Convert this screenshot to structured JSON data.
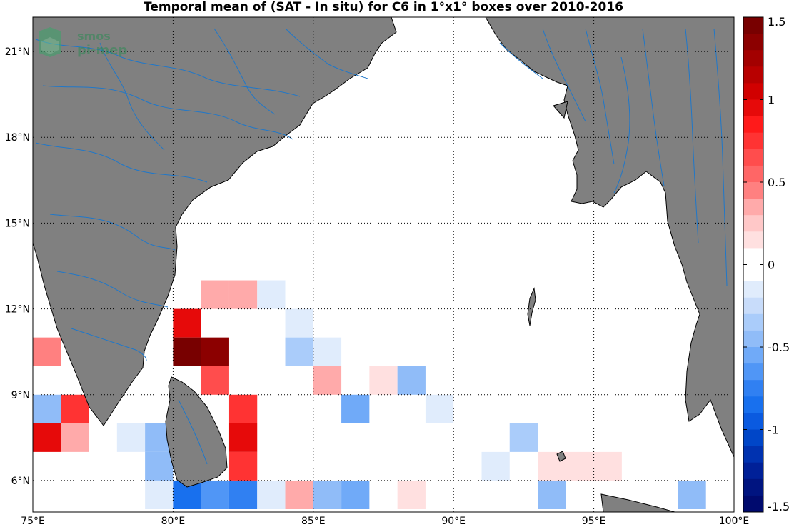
{
  "title": "Temporal mean of (SAT - In situ) for C6 in 1°x1° boxes over 2010-2016",
  "logo": {
    "line1": "smos",
    "line2": "pi-mep"
  },
  "map": {
    "lon_range": [
      75,
      100
    ],
    "lat_range": [
      4.9,
      22.2
    ],
    "lon_ticks": [
      75,
      80,
      85,
      90,
      95,
      100
    ],
    "lat_ticks": [
      6,
      9,
      12,
      15,
      18,
      21
    ],
    "lon_labels": [
      "75°E",
      "80°E",
      "85°E",
      "90°E",
      "95°E",
      "100°E"
    ],
    "lat_labels": [
      "6°N",
      "9°N",
      "12°N",
      "15°N",
      "18°N",
      "21°N"
    ],
    "grid": "dotted",
    "land_color": "#808080",
    "river_color": "#1f77c9"
  },
  "colorbar": {
    "range": [
      -1.5,
      1.5
    ],
    "ticks": [
      -1.5,
      -1,
      -0.5,
      0,
      0.5,
      1,
      1.5
    ],
    "tick_labels": [
      "-1.5",
      "-1",
      "-0.5",
      "0",
      "0.5",
      "1",
      "1.5"
    ],
    "colors_top_to_bottom": [
      "#780000",
      "#8c0000",
      "#a30000",
      "#b80000",
      "#d10000",
      "#e60a0a",
      "#ff1a1a",
      "#ff3333",
      "#ff4d4d",
      "#ff6666",
      "#ff8080",
      "#ffaaaa",
      "#ffc8c8",
      "#ffe0e0",
      "#ffffff",
      "#ffffff",
      "#e0ecfc",
      "#c8dcfa",
      "#aaccfa",
      "#90bcf8",
      "#70aaf8",
      "#5096f6",
      "#3080f2",
      "#1870ee",
      "#0a5ae0",
      "#0046c8",
      "#0032b0",
      "#002098",
      "#001480",
      "#000a6e"
    ]
  },
  "chart_data": {
    "type": "heatmap",
    "title": "Temporal mean of (SAT - In situ) for C6 in 1°x1° boxes over 2010-2016",
    "xlabel": "",
    "ylabel": "",
    "units_note": "cells are 1°x1° boxes; lon/lat = lower-left corner",
    "clim": [
      -1.5,
      1.5
    ],
    "cells": [
      {
        "lon": 81,
        "lat": 12,
        "value": 0.35
      },
      {
        "lon": 82,
        "lat": 12,
        "value": 0.35
      },
      {
        "lon": 83,
        "lat": 12,
        "value": -0.15
      },
      {
        "lon": 80,
        "lat": 11,
        "value": 0.95
      },
      {
        "lon": 84,
        "lat": 11,
        "value": -0.15
      },
      {
        "lon": 75,
        "lat": 10,
        "value": 0.5
      },
      {
        "lon": 80,
        "lat": 10,
        "value": 1.5
      },
      {
        "lon": 81,
        "lat": 10,
        "value": 1.35
      },
      {
        "lon": 84,
        "lat": 10,
        "value": -0.3
      },
      {
        "lon": 85,
        "lat": 10,
        "value": -0.15
      },
      {
        "lon": 81,
        "lat": 9,
        "value": 0.65
      },
      {
        "lon": 85,
        "lat": 9,
        "value": 0.4
      },
      {
        "lon": 87,
        "lat": 9,
        "value": 0.15
      },
      {
        "lon": 88,
        "lat": 9,
        "value": -0.45
      },
      {
        "lon": 75,
        "lat": 8,
        "value": -0.4
      },
      {
        "lon": 76,
        "lat": 8,
        "value": 0.75
      },
      {
        "lon": 82,
        "lat": 8,
        "value": 0.75
      },
      {
        "lon": 86,
        "lat": 8,
        "value": -0.55
      },
      {
        "lon": 89,
        "lat": 8,
        "value": -0.15
      },
      {
        "lon": 75,
        "lat": 7,
        "value": 0.95
      },
      {
        "lon": 76,
        "lat": 7,
        "value": 0.35
      },
      {
        "lon": 78,
        "lat": 7,
        "value": -0.15
      },
      {
        "lon": 79,
        "lat": 7,
        "value": -0.4
      },
      {
        "lon": 82,
        "lat": 7,
        "value": 0.95
      },
      {
        "lon": 92,
        "lat": 7,
        "value": -0.3
      },
      {
        "lon": 79,
        "lat": 6,
        "value": -0.4
      },
      {
        "lon": 82,
        "lat": 6,
        "value": 0.75
      },
      {
        "lon": 91,
        "lat": 6,
        "value": -0.15
      },
      {
        "lon": 93,
        "lat": 6,
        "value": 0.15
      },
      {
        "lon": 94,
        "lat": 6,
        "value": 0.15
      },
      {
        "lon": 95,
        "lat": 6,
        "value": 0.15
      },
      {
        "lon": 79,
        "lat": 5,
        "value": -0.15
      },
      {
        "lon": 80,
        "lat": 5,
        "value": -0.85
      },
      {
        "lon": 81,
        "lat": 5,
        "value": -0.65
      },
      {
        "lon": 82,
        "lat": 5,
        "value": -0.75
      },
      {
        "lon": 83,
        "lat": 5,
        "value": -0.15
      },
      {
        "lon": 84,
        "lat": 5,
        "value": 0.4
      },
      {
        "lon": 85,
        "lat": 5,
        "value": -0.45
      },
      {
        "lon": 86,
        "lat": 5,
        "value": -0.55
      },
      {
        "lon": 88,
        "lat": 5,
        "value": 0.15
      },
      {
        "lon": 93,
        "lat": 5,
        "value": -0.45
      },
      {
        "lon": 98,
        "lat": 5,
        "value": -0.45
      }
    ]
  }
}
